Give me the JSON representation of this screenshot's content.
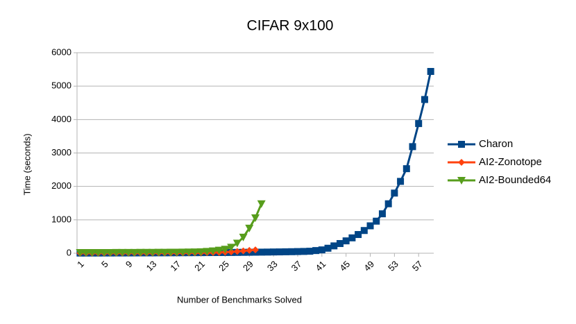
{
  "chart_data": {
    "type": "line",
    "title": "CIFAR 9x100",
    "x_label": "Number of Benchmarks Solved",
    "y_label": "Time (seconds)",
    "x": [
      1,
      2,
      3,
      4,
      5,
      6,
      7,
      8,
      9,
      10,
      11,
      12,
      13,
      14,
      15,
      16,
      17,
      18,
      19,
      20,
      21,
      22,
      23,
      24,
      25,
      26,
      27,
      28,
      29,
      30,
      31,
      32,
      33,
      34,
      35,
      36,
      37,
      38,
      39,
      40,
      41,
      42,
      43,
      44,
      45,
      46,
      47,
      48,
      49,
      50,
      51,
      52,
      53,
      54,
      55,
      56,
      57,
      58,
      59
    ],
    "xlim": [
      0.5,
      59.5
    ],
    "xticks": [
      1,
      5,
      9,
      13,
      17,
      21,
      25,
      29,
      33,
      37,
      41,
      45,
      49,
      53,
      57
    ],
    "ylim": [
      0,
      6000
    ],
    "yticks": [
      0,
      1000,
      2000,
      3000,
      4000,
      5000,
      6000
    ],
    "grid": true,
    "legend": "right",
    "series": [
      {
        "name": "Charon",
        "color": "#004586",
        "marker": "square",
        "values": [
          5,
          5,
          6,
          6,
          7,
          7,
          8,
          8,
          9,
          9,
          10,
          10,
          11,
          12,
          12,
          13,
          14,
          15,
          16,
          17,
          18,
          19,
          20,
          21,
          22,
          23,
          25,
          27,
          29,
          31,
          33,
          35,
          38,
          40,
          43,
          46,
          50,
          54,
          60,
          80,
          100,
          150,
          220,
          290,
          370,
          460,
          560,
          680,
          820,
          960,
          1180,
          1480,
          1800,
          2150,
          2530,
          3190,
          3880,
          4600,
          5440
        ]
      },
      {
        "name": "AI2-Zonotope",
        "color": "#ff420e",
        "marker": "diamond",
        "values": [
          2,
          2,
          3,
          3,
          3,
          4,
          4,
          4,
          5,
          5,
          6,
          6,
          7,
          7,
          8,
          9,
          10,
          11,
          12,
          14,
          16,
          18,
          20,
          24,
          30,
          40,
          55,
          70,
          85,
          100,
          null,
          null,
          null,
          null,
          null,
          null,
          null,
          null,
          null,
          null,
          null,
          null,
          null,
          null,
          null,
          null,
          null,
          null,
          null,
          null,
          null,
          null,
          null,
          null,
          null,
          null,
          null,
          null,
          null
        ]
      },
      {
        "name": "AI2-Bounded64",
        "color": "#579d1c",
        "marker": "triangle",
        "values": [
          20,
          20,
          21,
          21,
          22,
          22,
          23,
          23,
          24,
          24,
          25,
          26,
          27,
          28,
          29,
          30,
          32,
          34,
          36,
          40,
          45,
          55,
          70,
          90,
          120,
          180,
          300,
          480,
          750,
          1060,
          1480,
          null,
          null,
          null,
          null,
          null,
          null,
          null,
          null,
          null,
          null,
          null,
          null,
          null,
          null,
          null,
          null,
          null,
          null,
          null,
          null,
          null,
          null,
          null,
          null,
          null,
          null,
          null,
          null
        ]
      }
    ]
  }
}
